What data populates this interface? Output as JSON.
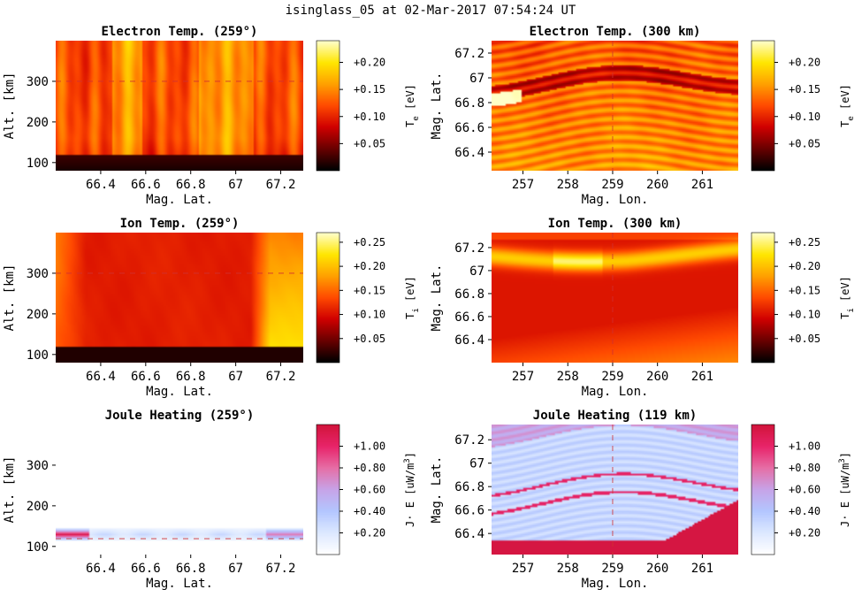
{
  "figure_title": "isinglass_05 at 02-Mar-2017 07:54:24 UT",
  "colormaps": {
    "hot": [
      "#000000",
      "#6a0000",
      "#cf0000",
      "#ff4a00",
      "#ffa000",
      "#ffe600",
      "#ffffc8"
    ],
    "joule": [
      "#ffffff",
      "#dce8ff",
      "#b3c6ff",
      "#c7a4e8",
      "#e66ea6",
      "#e8246a",
      "#d2143c"
    ]
  },
  "chart_data": [
    {
      "type": "heatmap",
      "title": "Electron Temp. (259°)",
      "xlabel": "Mag. Lat.",
      "ylabel": "Alt. [km]",
      "x_ticks": [
        "66.4",
        "66.6",
        "66.8",
        "67",
        "67.2"
      ],
      "y_ticks": [
        "100",
        "200",
        "300"
      ],
      "xlim": [
        66.2,
        67.3
      ],
      "ylim": [
        80,
        400
      ],
      "colorbar": {
        "label": "T",
        "sub": "e",
        "unit": " [eV]",
        "ticks": [
          "+0.05",
          "+0.10",
          "+0.15",
          "+0.20"
        ],
        "range": [
          0.0,
          0.24
        ],
        "cmap": "hot"
      },
      "marker_line": {
        "axis": "y",
        "value": 300
      }
    },
    {
      "type": "heatmap",
      "title": "Electron Temp. (300 km)",
      "xlabel": "Mag. Lon.",
      "ylabel": "Mag. Lat.",
      "x_ticks": [
        "257",
        "258",
        "259",
        "260",
        "261"
      ],
      "y_ticks": [
        "66.4",
        "66.6",
        "66.8",
        "67",
        "67.2"
      ],
      "xlim": [
        256.3,
        261.8
      ],
      "ylim": [
        66.25,
        67.3
      ],
      "colorbar": {
        "label": "T",
        "sub": "e",
        "unit": " [eV]",
        "ticks": [
          "+0.05",
          "+0.10",
          "+0.15",
          "+0.20"
        ],
        "range": [
          0.0,
          0.24
        ],
        "cmap": "hot"
      },
      "marker_line": {
        "axis": "x",
        "value": 259
      }
    },
    {
      "type": "heatmap",
      "title": "Ion Temp. (259°)",
      "xlabel": "Mag. Lat.",
      "ylabel": "Alt. [km]",
      "x_ticks": [
        "66.4",
        "66.6",
        "66.8",
        "67",
        "67.2"
      ],
      "y_ticks": [
        "100",
        "200",
        "300"
      ],
      "xlim": [
        66.2,
        67.3
      ],
      "ylim": [
        80,
        400
      ],
      "colorbar": {
        "label": "T",
        "sub": "i",
        "unit": " [eV]",
        "ticks": [
          "+0.05",
          "+0.10",
          "+0.15",
          "+0.20",
          "+0.25"
        ],
        "range": [
          0.0,
          0.27
        ],
        "cmap": "hot"
      },
      "marker_line": {
        "axis": "y",
        "value": 300
      }
    },
    {
      "type": "heatmap",
      "title": "Ion Temp. (300 km)",
      "xlabel": "Mag. Lon.",
      "ylabel": "Mag. Lat.",
      "x_ticks": [
        "257",
        "258",
        "259",
        "260",
        "261"
      ],
      "y_ticks": [
        "66.4",
        "66.6",
        "66.8",
        "67",
        "67.2"
      ],
      "xlim": [
        256.3,
        261.8
      ],
      "ylim": [
        66.2,
        67.33
      ],
      "colorbar": {
        "label": "T",
        "sub": "i",
        "unit": " [eV]",
        "ticks": [
          "+0.05",
          "+0.10",
          "+0.15",
          "+0.20",
          "+0.25"
        ],
        "range": [
          0.0,
          0.27
        ],
        "cmap": "hot"
      },
      "marker_line": {
        "axis": "x",
        "value": 259
      }
    },
    {
      "type": "heatmap",
      "title": "Joule Heating (259°)",
      "xlabel": "Mag. Lat.",
      "ylabel": "Alt. [km]",
      "x_ticks": [
        "66.4",
        "66.6",
        "66.8",
        "67",
        "67.2"
      ],
      "y_ticks": [
        "100",
        "200",
        "300"
      ],
      "xlim": [
        66.2,
        67.3
      ],
      "ylim": [
        80,
        400
      ],
      "colorbar": {
        "label": "J· E [uW/m",
        "sup": "3",
        "unit": "]",
        "ticks": [
          "+0.20",
          "+0.40",
          "+0.60",
          "+0.80",
          "+1.00"
        ],
        "range": [
          0.0,
          1.2
        ],
        "cmap": "joule"
      },
      "marker_line": {
        "axis": "y",
        "value": 119
      }
    },
    {
      "type": "heatmap",
      "title": "Joule Heating (119 km)",
      "xlabel": "Mag. Lon.",
      "ylabel": "Mag. Lat.",
      "x_ticks": [
        "257",
        "258",
        "259",
        "260",
        "261"
      ],
      "y_ticks": [
        "66.4",
        "66.6",
        "66.8",
        "67",
        "67.2"
      ],
      "xlim": [
        256.3,
        261.8
      ],
      "ylim": [
        66.22,
        67.33
      ],
      "colorbar": {
        "label": "J· E [uW/m",
        "sup": "3",
        "unit": "]",
        "ticks": [
          "+0.20",
          "+0.40",
          "+0.60",
          "+0.80",
          "+1.00"
        ],
        "range": [
          0.0,
          1.2
        ],
        "cmap": "joule"
      },
      "marker_line": {
        "axis": "x",
        "value": 259
      }
    }
  ]
}
